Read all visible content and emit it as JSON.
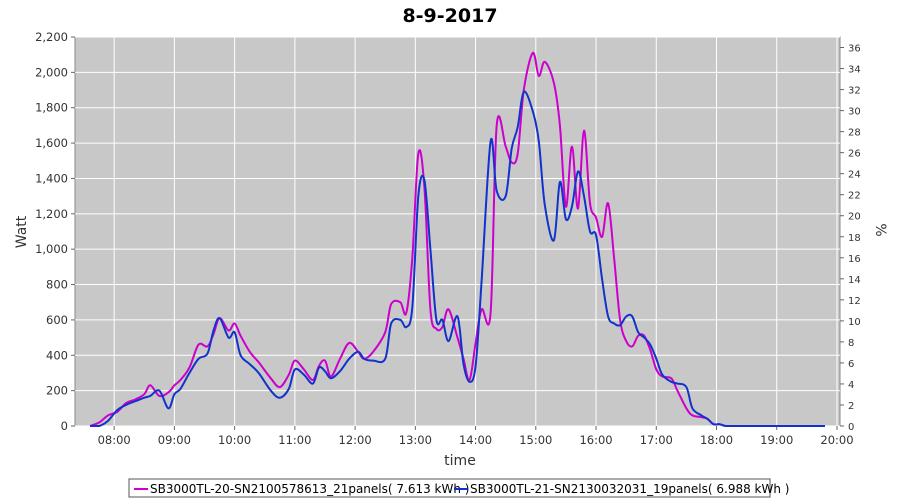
{
  "chart_data": {
    "type": "line",
    "title": "8-9-2017",
    "xlabel": "time",
    "ylabel": "Watt",
    "y2label": "%",
    "x_ticks": [
      "08:00",
      "09:00",
      "10:00",
      "11:00",
      "12:00",
      "13:00",
      "14:00",
      "15:00",
      "16:00",
      "17:00",
      "18:00",
      "19:00",
      "20:00"
    ],
    "x_range_hours": [
      7.35,
      20.05
    ],
    "ylim": [
      0,
      2200
    ],
    "y_ticks": [
      "0",
      "200",
      "400",
      "600",
      "800",
      "1,000",
      "1,200",
      "1,400",
      "1,600",
      "1,800",
      "2,000",
      "2,200"
    ],
    "y2lim": [
      0,
      37
    ],
    "y2_ticks": [
      "0",
      "2",
      "4",
      "6",
      "8",
      "10",
      "12",
      "14",
      "16",
      "18",
      "20",
      "22",
      "24",
      "26",
      "28",
      "30",
      "32",
      "34",
      "36"
    ],
    "grid": true,
    "legend_position": "bottom",
    "colors": {
      "plot_bg": "#c8c8c8",
      "grid": "#ffffff",
      "series1": "#cc00cc",
      "series2": "#1133cc"
    },
    "series": [
      {
        "name": "SB3000TL-20-SN2100578613_21panels( 7.613 kWh )",
        "color": "#cc00cc",
        "x": [
          7.6,
          7.75,
          7.9,
          8.05,
          8.2,
          8.35,
          8.5,
          8.6,
          8.75,
          8.9,
          9.0,
          9.1,
          9.25,
          9.4,
          9.55,
          9.65,
          9.75,
          9.9,
          10.0,
          10.1,
          10.25,
          10.4,
          10.6,
          10.75,
          10.9,
          11.0,
          11.15,
          11.3,
          11.4,
          11.5,
          11.6,
          11.75,
          11.9,
          12.05,
          12.15,
          12.3,
          12.5,
          12.6,
          12.75,
          12.85,
          12.95,
          13.05,
          13.15,
          13.25,
          13.35,
          13.45,
          13.55,
          13.7,
          13.8,
          13.9,
          14.0,
          14.1,
          14.25,
          14.35,
          14.5,
          14.6,
          14.7,
          14.8,
          14.95,
          15.05,
          15.15,
          15.3,
          15.4,
          15.5,
          15.6,
          15.7,
          15.8,
          15.9,
          16.0,
          16.1,
          16.2,
          16.3,
          16.4,
          16.5,
          16.6,
          16.7,
          16.8,
          16.9,
          17.0,
          17.1,
          17.25,
          17.35,
          17.5,
          17.6,
          17.75,
          17.85,
          17.95,
          18.05,
          18.15,
          18.3,
          18.45,
          18.6,
          18.75,
          18.9,
          19.0,
          19.1,
          19.2,
          19.35,
          19.5,
          19.65,
          19.8
        ],
        "values": [
          0,
          20,
          60,
          80,
          130,
          150,
          180,
          230,
          170,
          190,
          230,
          260,
          330,
          460,
          450,
          520,
          610,
          540,
          580,
          510,
          420,
          360,
          270,
          220,
          290,
          370,
          320,
          260,
          340,
          370,
          280,
          380,
          470,
          420,
          380,
          420,
          530,
          690,
          700,
          640,
          950,
          1540,
          1350,
          660,
          550,
          560,
          660,
          500,
          380,
          260,
          470,
          660,
          640,
          1700,
          1580,
          1490,
          1540,
          1900,
          2110,
          1980,
          2060,
          1940,
          1700,
          1240,
          1580,
          1230,
          1670,
          1260,
          1180,
          1070,
          1260,
          950,
          600,
          480,
          450,
          510,
          510,
          430,
          320,
          280,
          270,
          200,
          100,
          60,
          50,
          40,
          10,
          10,
          0,
          0,
          0,
          0,
          0,
          0,
          0,
          0,
          0,
          0,
          0,
          0,
          0
        ]
      },
      {
        "name": "SB3000TL-21-SN2130032031_19panels( 6.988 kWh )",
        "color": "#1133cc",
        "x": [
          7.6,
          7.75,
          7.9,
          8.05,
          8.2,
          8.35,
          8.5,
          8.6,
          8.75,
          8.9,
          9.0,
          9.1,
          9.25,
          9.4,
          9.55,
          9.65,
          9.75,
          9.9,
          10.0,
          10.1,
          10.25,
          10.4,
          10.6,
          10.75,
          10.9,
          11.0,
          11.15,
          11.3,
          11.4,
          11.5,
          11.6,
          11.75,
          11.9,
          12.05,
          12.15,
          12.3,
          12.5,
          12.6,
          12.75,
          12.85,
          12.95,
          13.05,
          13.15,
          13.25,
          13.35,
          13.45,
          13.55,
          13.7,
          13.8,
          13.9,
          14.0,
          14.1,
          14.25,
          14.35,
          14.5,
          14.6,
          14.7,
          14.8,
          14.95,
          15.05,
          15.15,
          15.3,
          15.4,
          15.5,
          15.6,
          15.7,
          15.8,
          15.9,
          16.0,
          16.1,
          16.2,
          16.3,
          16.4,
          16.5,
          16.6,
          16.7,
          16.8,
          16.9,
          17.0,
          17.1,
          17.25,
          17.35,
          17.5,
          17.6,
          17.75,
          17.85,
          17.95,
          18.05,
          18.15,
          18.3,
          18.45,
          18.6,
          18.75,
          18.9,
          19.0,
          19.1,
          19.2,
          19.35,
          19.5,
          19.65,
          19.8
        ],
        "values": [
          0,
          0,
          30,
          90,
          120,
          140,
          160,
          170,
          200,
          100,
          180,
          210,
          300,
          380,
          410,
          540,
          610,
          500,
          530,
          400,
          350,
          300,
          200,
          160,
          210,
          320,
          290,
          240,
          330,
          310,
          270,
          310,
          380,
          420,
          380,
          370,
          380,
          580,
          600,
          560,
          670,
          1300,
          1390,
          1000,
          600,
          600,
          480,
          620,
          350,
          250,
          340,
          820,
          1610,
          1330,
          1300,
          1570,
          1690,
          1890,
          1780,
          1610,
          1250,
          1050,
          1380,
          1170,
          1240,
          1440,
          1300,
          1100,
          1080,
          830,
          620,
          580,
          570,
          620,
          620,
          530,
          500,
          460,
          380,
          290,
          250,
          240,
          220,
          100,
          60,
          40,
          10,
          10,
          0,
          0,
          0,
          0,
          0,
          0,
          0,
          0,
          0,
          0,
          0,
          0,
          0
        ]
      }
    ]
  }
}
